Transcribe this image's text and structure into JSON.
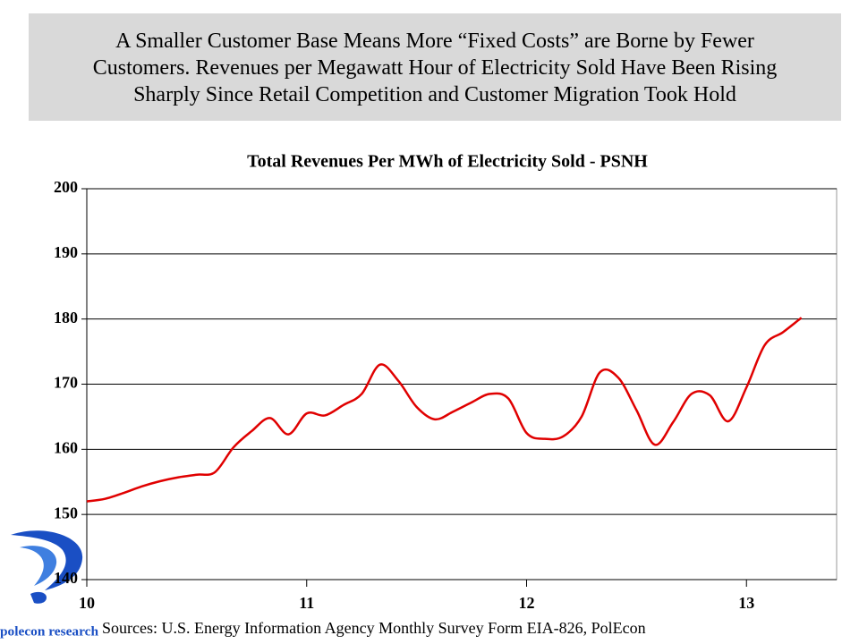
{
  "header": {
    "lines": [
      "A Smaller Customer Base Means More “Fixed Costs” are Borne by Fewer",
      "Customers.  Revenues per Megawatt Hour of Electricity Sold Have Been Rising",
      "Sharply Since Retail Competition and Customer Migration Took Hold"
    ]
  },
  "chart_data": {
    "type": "line",
    "title": "Total Revenues Per MWh of Electricity Sold - PSNH",
    "x": [
      10,
      10.083,
      10.167,
      10.25,
      10.333,
      10.417,
      10.5,
      10.583,
      10.667,
      10.75,
      10.833,
      10.917,
      11,
      11.083,
      11.167,
      11.25,
      11.333,
      11.417,
      11.5,
      11.583,
      11.667,
      11.75,
      11.833,
      11.917,
      12,
      12.083,
      12.167,
      12.25,
      12.333,
      12.417,
      12.5,
      12.583,
      12.667,
      12.75,
      12.833,
      12.917,
      13,
      13.083,
      13.167,
      13.25
    ],
    "series": [
      {
        "color": "#e00000",
        "values": [
          152.0,
          152.4,
          153.3,
          154.3,
          155.1,
          155.7,
          156.1,
          156.5,
          160.3,
          162.8,
          164.8,
          162.3,
          165.5,
          165.2,
          166.8,
          168.5,
          173.0,
          170.5,
          166.5,
          164.6,
          165.8,
          167.2,
          168.5,
          167.8,
          162.5,
          161.6,
          162.0,
          165.0,
          171.8,
          171.0,
          166.0,
          160.7,
          164.2,
          168.5,
          168.3,
          164.3,
          169.5,
          176.0,
          178.0,
          180.2
        ]
      }
    ],
    "xlim": [
      10,
      13.41
    ],
    "xticks": [
      10,
      11,
      12,
      13
    ],
    "ylim": [
      140,
      200
    ],
    "yticks": [
      140,
      150,
      160,
      170,
      180,
      190,
      200
    ],
    "grid": true
  },
  "footer": {
    "source": "Sources: U.S. Energy Information Agency Monthly Survey Form EIA-826,  PolEcon",
    "logo": "polecon research"
  }
}
